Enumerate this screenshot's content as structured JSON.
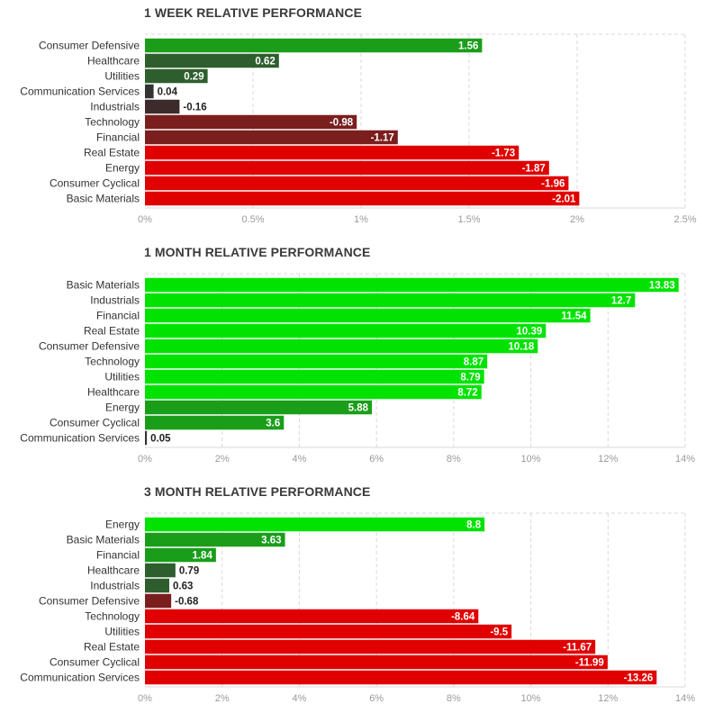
{
  "colors": {
    "positive_strong": "#00e300",
    "positive_mid": "#1a9e1a",
    "positive_dark": "#2e5e2e",
    "neutral_dark": "#333333",
    "negative_dark": "#3d2a2a",
    "negative_mid": "#7a1e1e",
    "negative_strong": "#e00000",
    "grid": "#d9d9d9",
    "label_text": "#333333",
    "tick_text": "#9a9a9a"
  },
  "chart_data": [
    {
      "type": "bar",
      "orientation": "horizontal",
      "title": "1 WEEK RELATIVE PERFORMANCE",
      "categories": [
        "Consumer Defensive",
        "Healthcare",
        "Utilities",
        "Communication Services",
        "Industrials",
        "Technology",
        "Financial",
        "Real Estate",
        "Energy",
        "Consumer Cyclical",
        "Basic Materials"
      ],
      "values": [
        1.56,
        0.62,
        0.29,
        0.04,
        -0.16,
        -0.98,
        -1.17,
        -1.73,
        -1.87,
        -1.96,
        -2.01
      ],
      "value_labels": [
        "1.56",
        "0.62",
        "0.29",
        "0.04",
        "-0.16",
        "-0.98",
        "-1.17",
        "-1.73",
        "-1.87",
        "-1.96",
        "-2.01"
      ],
      "bar_length": "absolute value",
      "xlim": [
        0,
        2.5
      ],
      "xticks": [
        0,
        0.5,
        1,
        1.5,
        2,
        2.5
      ],
      "xtick_labels": [
        "0%",
        "0.5%",
        "1%",
        "1.5%",
        "2%",
        "2.5%"
      ],
      "grid": true
    },
    {
      "type": "bar",
      "orientation": "horizontal",
      "title": "1 MONTH RELATIVE PERFORMANCE",
      "categories": [
        "Basic Materials",
        "Industrials",
        "Financial",
        "Real Estate",
        "Consumer Defensive",
        "Technology",
        "Utilities",
        "Healthcare",
        "Energy",
        "Consumer Cyclical",
        "Communication Services"
      ],
      "values": [
        13.83,
        12.7,
        11.54,
        10.39,
        10.18,
        8.87,
        8.79,
        8.72,
        5.88,
        3.6,
        0.05
      ],
      "value_labels": [
        "13.83",
        "12.7",
        "11.54",
        "10.39",
        "10.18",
        "8.87",
        "8.79",
        "8.72",
        "5.88",
        "3.6",
        "0.05"
      ],
      "bar_length": "absolute value",
      "xlim": [
        0,
        14
      ],
      "xticks": [
        0,
        2,
        4,
        6,
        8,
        10,
        12,
        14
      ],
      "xtick_labels": [
        "0%",
        "2%",
        "4%",
        "6%",
        "8%",
        "10%",
        "12%",
        "14%"
      ],
      "grid": true
    },
    {
      "type": "bar",
      "orientation": "horizontal",
      "title": "3 MONTH RELATIVE PERFORMANCE",
      "categories": [
        "Energy",
        "Basic Materials",
        "Financial",
        "Healthcare",
        "Industrials",
        "Consumer Defensive",
        "Technology",
        "Utilities",
        "Real Estate",
        "Consumer Cyclical",
        "Communication Services"
      ],
      "values": [
        8.8,
        3.63,
        1.84,
        0.79,
        0.63,
        -0.68,
        -8.64,
        -9.5,
        -11.67,
        -11.99,
        -13.26
      ],
      "value_labels": [
        "8.8",
        "3.63",
        "1.84",
        "0.79",
        "0.63",
        "-0.68",
        "-8.64",
        "-9.5",
        "-11.67",
        "-11.99",
        "-13.26"
      ],
      "bar_length": "absolute value",
      "xlim": [
        0,
        14
      ],
      "xticks": [
        0,
        2,
        4,
        6,
        8,
        10,
        12,
        14
      ],
      "xtick_labels": [
        "0%",
        "2%",
        "4%",
        "6%",
        "8%",
        "10%",
        "12%",
        "14%"
      ],
      "grid": true
    }
  ]
}
